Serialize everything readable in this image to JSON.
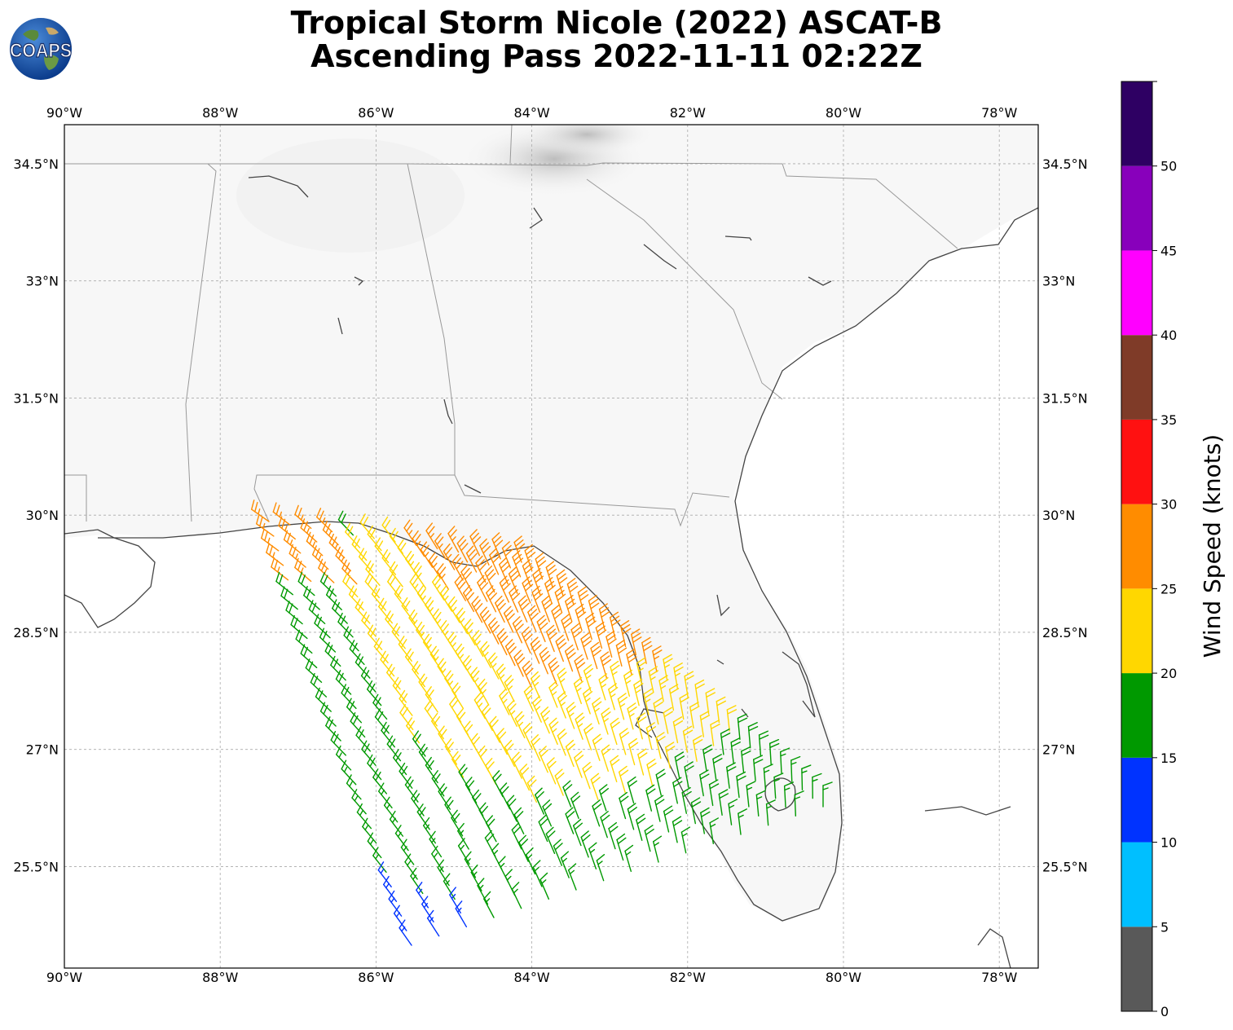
{
  "title": {
    "line1": "Tropical Storm Nicole (2022) ASCAT-B",
    "line2": "Ascending Pass 2022-11-11 02:22Z"
  },
  "logo": {
    "text": "COAPS",
    "icon": "earth-globe-logo"
  },
  "map": {
    "lon_range": [
      -90.0,
      -77.5
    ],
    "lat_range": [
      24.2,
      35.0
    ],
    "grid": true,
    "lon_ticks": [
      "90°W",
      "88°W",
      "86°W",
      "84°W",
      "82°W",
      "80°W",
      "78°W"
    ],
    "lat_ticks": [
      "34.5°N",
      "33°N",
      "31.5°N",
      "30°N",
      "28.5°N",
      "27°N",
      "25.5°N"
    ]
  },
  "colorbar": {
    "label": "Wind Speed (knots)",
    "ticks": [
      "0",
      "5",
      "10",
      "15",
      "20",
      "25",
      "30",
      "35",
      "40",
      "45",
      "50"
    ],
    "bins": [
      {
        "min": 0,
        "max": 5,
        "color": "#595959"
      },
      {
        "min": 5,
        "max": 10,
        "color": "#00bfff"
      },
      {
        "min": 10,
        "max": 15,
        "color": "#0033ff"
      },
      {
        "min": 15,
        "max": 20,
        "color": "#009900"
      },
      {
        "min": 20,
        "max": 25,
        "color": "#ffd700"
      },
      {
        "min": 25,
        "max": 30,
        "color": "#ff8c00"
      },
      {
        "min": 30,
        "max": 35,
        "color": "#ff1111"
      },
      {
        "min": 35,
        "max": 40,
        "color": "#7f3b28"
      },
      {
        "min": 40,
        "max": 45,
        "color": "#ff00ff"
      },
      {
        "min": 45,
        "max": 50,
        "color": "#8800bb"
      },
      {
        "min": 50,
        "max": 55,
        "color": "#2e0063"
      }
    ]
  }
}
